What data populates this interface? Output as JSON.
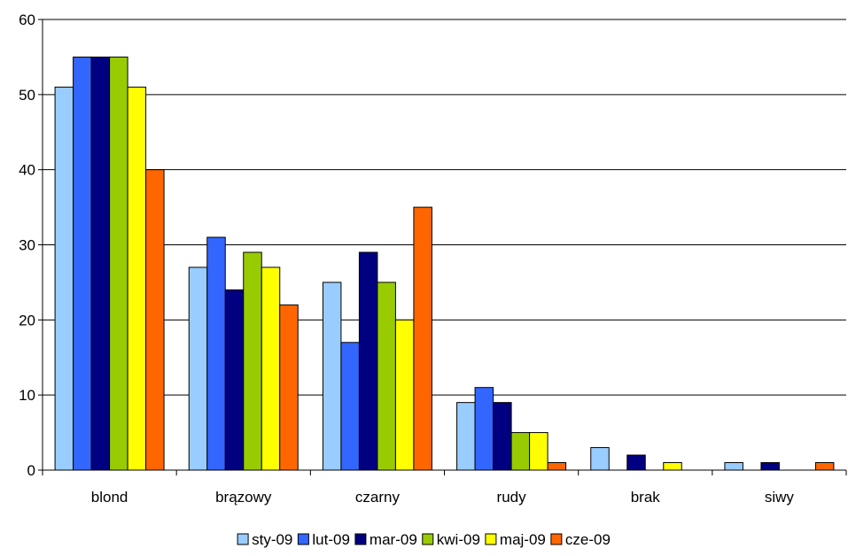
{
  "chart_data": {
    "type": "bar",
    "title": "",
    "xlabel": "",
    "ylabel": "",
    "categories": [
      "blond",
      "brązowy",
      "czarny",
      "rudy",
      "brak",
      "siwy"
    ],
    "series": [
      {
        "name": "sty-09",
        "color": "#99ccff",
        "values": [
          51,
          27,
          25,
          9,
          3,
          1
        ]
      },
      {
        "name": "lut-09",
        "color": "#3366ff",
        "values": [
          55,
          31,
          17,
          11,
          0,
          0
        ]
      },
      {
        "name": "mar-09",
        "color": "#000080",
        "values": [
          55,
          24,
          29,
          9,
          2,
          1
        ]
      },
      {
        "name": "kwi-09",
        "color": "#99cc00",
        "values": [
          55,
          29,
          25,
          5,
          0,
          0
        ]
      },
      {
        "name": "maj-09",
        "color": "#ffff00",
        "values": [
          51,
          27,
          20,
          5,
          1,
          0
        ]
      },
      {
        "name": "cze-09",
        "color": "#ff6600",
        "values": [
          40,
          22,
          35,
          1,
          0,
          1
        ]
      }
    ],
    "ylim": [
      0,
      60
    ],
    "yticks": [
      0,
      10,
      20,
      30,
      40,
      50,
      60
    ],
    "grid": true,
    "legend": "bottom"
  }
}
